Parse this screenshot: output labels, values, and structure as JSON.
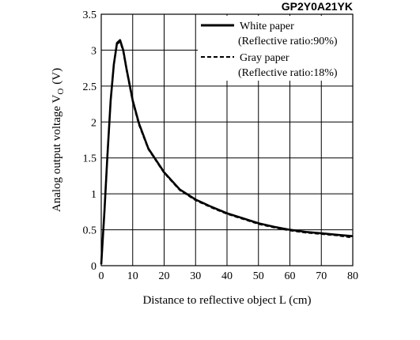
{
  "chart_data": {
    "type": "line",
    "title": "GP2Y0A21YK",
    "xlabel": "Distance to reflective object L (cm)",
    "ylabel": "Analog output voltage V",
    "ylabel_subscript": "O",
    "ylabel_unit": "(V)",
    "xlim": [
      0,
      80
    ],
    "ylim": [
      0,
      3.5
    ],
    "xticks": [
      0,
      10,
      20,
      30,
      40,
      50,
      60,
      70,
      80
    ],
    "yticks": [
      0,
      0.5,
      1,
      1.5,
      2,
      2.5,
      3,
      3.5
    ],
    "grid": true,
    "legend_position": "top-right",
    "series": [
      {
        "name": "White paper",
        "name_detail": "(Reflective ratio:90%)",
        "style": "solid",
        "x": [
          0,
          1,
          2,
          3,
          4,
          5,
          6,
          7,
          8,
          10,
          12,
          15,
          20,
          25,
          30,
          35,
          40,
          45,
          50,
          55,
          60,
          65,
          70,
          75,
          80
        ],
        "y": [
          0.02,
          0.75,
          1.55,
          2.3,
          2.8,
          3.1,
          3.14,
          3.0,
          2.75,
          2.3,
          1.98,
          1.63,
          1.3,
          1.06,
          0.92,
          0.82,
          0.73,
          0.66,
          0.59,
          0.54,
          0.5,
          0.47,
          0.45,
          0.43,
          0.41
        ]
      },
      {
        "name": "Gray paper",
        "name_detail": "(Reflective ratio:18%)",
        "style": "dashed",
        "x": [
          0,
          1,
          2,
          3,
          4,
          5,
          6,
          7,
          8,
          10,
          12,
          15,
          20,
          25,
          30,
          35,
          40,
          45,
          50,
          55,
          60,
          65,
          70,
          75,
          80
        ],
        "y": [
          0.02,
          0.75,
          1.55,
          2.3,
          2.8,
          3.08,
          3.12,
          2.98,
          2.73,
          2.28,
          1.96,
          1.62,
          1.29,
          1.05,
          0.91,
          0.81,
          0.72,
          0.65,
          0.58,
          0.53,
          0.49,
          0.46,
          0.44,
          0.42,
          0.39
        ]
      }
    ]
  }
}
